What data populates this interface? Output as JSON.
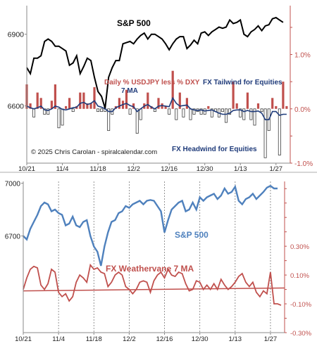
{
  "chart_data": [
    {
      "type": "line",
      "panel": "top",
      "copyright": "© 2025 Chris Carolan - spiralcalendar.com",
      "left_axis": {
        "ticks": [
          6600,
          6900
        ],
        "ylim": [
          6360,
          7020
        ]
      },
      "right_axis": {
        "ticks": [
          "1.0%",
          "0.0%",
          "-1.0%"
        ],
        "tick_values": [
          1.0,
          0.0,
          -1.0
        ],
        "ylim": [
          -1.0,
          1.9
        ]
      },
      "x_tick_labels": [
        "10/21",
        "11/4",
        "11/18",
        "12/2",
        "12/16",
        "12/30",
        "1/13",
        "1/27"
      ],
      "x_tick_positions": [
        0,
        10,
        20,
        30,
        40,
        50,
        60,
        70
      ],
      "x_range": [
        0,
        74
      ],
      "grid": false,
      "annotations": {
        "sp_label": "S&P 500",
        "daily_label": "Daily % USDJPY less % DXY",
        "ma_label": "7 MA",
        "tailwind_label": "FX Tailwind for Equities",
        "headwind_label": "FX Headwind for Equities"
      },
      "colors": {
        "sp": "#000000",
        "bars_pos": "#c0504d",
        "bars_neg": "#ffffff",
        "bars_edge": "#222222",
        "ma": "#1f3b7a",
        "text_red": "#c0504d",
        "text_navy": "#1f3b7a",
        "axis": "#c0504d"
      },
      "series": [
        {
          "name": "S&P 500",
          "axis": "left",
          "values": [
            6760,
            6735,
            6800,
            6800,
            6810,
            6870,
            6880,
            6870,
            6850,
            6850,
            6840,
            6830,
            6770,
            6780,
            6810,
            6735,
            6765,
            6800,
            6790,
            6720,
            6660,
            6640,
            6590,
            6720,
            6760,
            6790,
            6790,
            6860,
            6865,
            6870,
            6860,
            6880,
            6895,
            6905,
            6880,
            6900,
            6900,
            6890,
            6880,
            6860,
            6835,
            6860,
            6880,
            6890,
            6890,
            6840,
            6855,
            6875,
            6860,
            6905,
            6910,
            6895,
            6910,
            6920,
            6930,
            6925,
            6930,
            6960,
            6945,
            6950,
            6960,
            6900,
            6890,
            6910,
            6920,
            6935,
            6915,
            6935,
            6940,
            6965,
            6970,
            6960,
            6950
          ]
        },
        {
          "name": "Daily % USDJPY less % DXY",
          "axis": "right",
          "values": [
            0.45,
            0.1,
            -0.15,
            0.3,
            0.2,
            -0.1,
            -0.1,
            0.15,
            0.45,
            -0.35,
            -0.3,
            0.05,
            0.2,
            -0.05,
            0.05,
            0.3,
            0.3,
            0.1,
            0.1,
            0.4,
            -0.05,
            -0.05,
            -0.05,
            -0.4,
            -0.1,
            0.05,
            0.2,
            0.15,
            0.35,
            -0.1,
            0.1,
            -0.45,
            -0.2,
            0.1,
            0.3,
            0.05,
            -0.05,
            0.2,
            0.1,
            0.05,
            -0.1,
            0.7,
            -0.2,
            0.3,
            -0.15,
            0.2,
            -0.2,
            -0.1,
            -0.05,
            -0.1,
            -0.1,
            0.05,
            -0.15,
            -0.05,
            -0.15,
            -0.05,
            -0.25,
            -0.1,
            0.5,
            0.1,
            -0.15,
            -0.2,
            0.3,
            -0.2,
            -0.3,
            0.1,
            -0.05,
            -0.9,
            -0.4,
            0.2,
            0.05,
            -0.85,
            0.5,
            0.05
          ]
        },
        {
          "name": "7 MA",
          "axis": "right",
          "values": [
            0.05,
            0.02,
            0.0,
            0.02,
            0.05,
            -0.02,
            -0.03,
            0.0,
            0.05,
            0.03,
            -0.01,
            -0.02,
            0.0,
            0.02,
            0.03,
            0.1,
            0.12,
            0.08,
            0.1,
            0.15,
            0.05,
            0.03,
            0.0,
            -0.05,
            -0.05,
            0.02,
            0.05,
            0.08,
            0.1,
            0.06,
            0.04,
            -0.05,
            0.0,
            0.05,
            0.08,
            0.03,
            0.0,
            0.05,
            0.06,
            0.05,
            0.04,
            0.2,
            0.1,
            0.05,
            0.06,
            0.07,
            0.0,
            -0.02,
            -0.03,
            -0.02,
            -0.04,
            -0.03,
            -0.02,
            -0.05,
            -0.08,
            -0.1,
            -0.1,
            -0.08,
            -0.03,
            -0.02,
            -0.02,
            -0.05,
            -0.03,
            -0.05,
            -0.05,
            -0.04,
            -0.08,
            -0.2,
            -0.2,
            -0.05,
            -0.05,
            -0.12,
            -0.1,
            -0.1
          ]
        }
      ]
    },
    {
      "type": "line",
      "panel": "bottom",
      "left_axis": {
        "ticks": [
          6700,
          7000
        ],
        "ylim": [
          6150,
          7010
        ]
      },
      "right_axis": {
        "ticks": [
          "0.30%",
          "0.10%",
          "-0.10%",
          "-0.30%"
        ],
        "tick_values": [
          0.3,
          0.1,
          -0.1,
          -0.3
        ],
        "ylim": [
          -0.3,
          0.75
        ]
      },
      "x_tick_labels": [
        "10/21",
        "11/4",
        "11/18",
        "12/2",
        "12/16",
        "12/30",
        "1/13",
        "1/27"
      ],
      "x_tick_positions": [
        0,
        10,
        20,
        30,
        40,
        50,
        60,
        70
      ],
      "x_range": [
        0,
        74
      ],
      "grid": "vertical dashed",
      "annotations": {
        "sp_label": "S&P 500",
        "fx_label": "FX Weathervane 7 MA"
      },
      "colors": {
        "sp": "#4f81bd",
        "fx": "#c0504d",
        "trend": "#c0504d",
        "axis": "#c0504d",
        "text_blue": "#4f81bd",
        "text_red": "#c0504d"
      },
      "series": [
        {
          "name": "S&P 500",
          "axis": "left",
          "values": [
            6700,
            6680,
            6740,
            6780,
            6820,
            6870,
            6890,
            6880,
            6840,
            6850,
            6830,
            6820,
            6760,
            6770,
            6810,
            6760,
            6750,
            6780,
            6790,
            6700,
            6640,
            6610,
            6530,
            6640,
            6720,
            6780,
            6790,
            6830,
            6840,
            6870,
            6860,
            6880,
            6890,
            6900,
            6880,
            6900,
            6905,
            6900,
            6870,
            6840,
            6720,
            6790,
            6850,
            6870,
            6890,
            6900,
            6840,
            6850,
            6890,
            6850,
            6920,
            6900,
            6920,
            6930,
            6940,
            6910,
            6930,
            6970,
            6940,
            6950,
            6980,
            6900,
            6880,
            6910,
            6920,
            6940,
            6910,
            6930,
            6950,
            6975,
            6985,
            6970,
            6970
          ]
        },
        {
          "name": "FX Weathervane 7 MA",
          "axis": "right",
          "values": [
            0.0,
            0.08,
            0.14,
            0.16,
            0.15,
            0.03,
            0.0,
            0.04,
            0.14,
            0.12,
            -0.02,
            -0.05,
            -0.03,
            -0.08,
            -0.05,
            0.05,
            0.1,
            0.08,
            0.05,
            0.17,
            0.14,
            0.15,
            0.12,
            0.11,
            0.02,
            0.05,
            0.1,
            0.12,
            0.1,
            0.02,
            0.0,
            -0.03,
            0.0,
            0.05,
            0.06,
            0.05,
            -0.02,
            0.06,
            0.1,
            0.12,
            0.08,
            0.14,
            0.1,
            0.09,
            0.12,
            0.11,
            0.04,
            -0.01,
            0.0,
            0.06,
            0.05,
            0.0,
            0.03,
            0.0,
            0.04,
            0.0,
            0.07,
            0.03,
            0.0,
            0.02,
            0.05,
            0.09,
            0.11,
            0.05,
            0.02,
            0.05,
            -0.02,
            -0.05,
            -0.01,
            -0.03,
            0.12,
            -0.1,
            -0.1,
            -0.11
          ]
        },
        {
          "name": "trend",
          "axis": "right",
          "values": [
            -0.01,
            0.01
          ]
        }
      ]
    }
  ]
}
